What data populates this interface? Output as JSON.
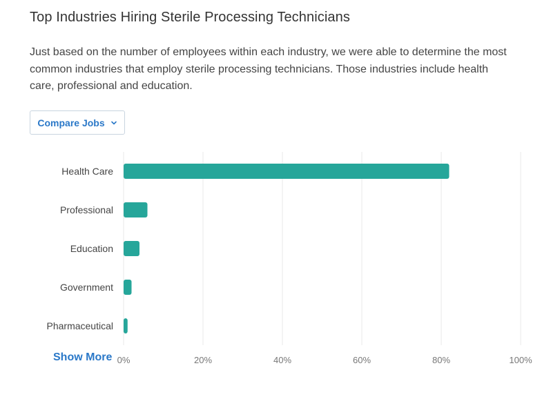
{
  "header": {
    "title": "Top Industries Hiring Sterile Processing Technicians",
    "description": "Just based on the number of employees within each industry, we were able to determine the most common industries that employ sterile processing technicians. Those industries include health care, professional and education."
  },
  "controls": {
    "compare_label": "Compare Jobs",
    "show_more_label": "Show More"
  },
  "colors": {
    "bar": "#26a69a",
    "grid": "#e8e8e8",
    "link": "#2a78c8"
  },
  "chart_data": {
    "type": "bar",
    "orientation": "horizontal",
    "categories": [
      "Health Care",
      "Professional",
      "Education",
      "Government",
      "Pharmaceutical"
    ],
    "values": [
      82,
      6,
      4,
      2,
      1
    ],
    "xlim": [
      0,
      100
    ],
    "xticks": [
      "0%",
      "20%",
      "40%",
      "60%",
      "80%",
      "100%"
    ],
    "grid": true
  }
}
